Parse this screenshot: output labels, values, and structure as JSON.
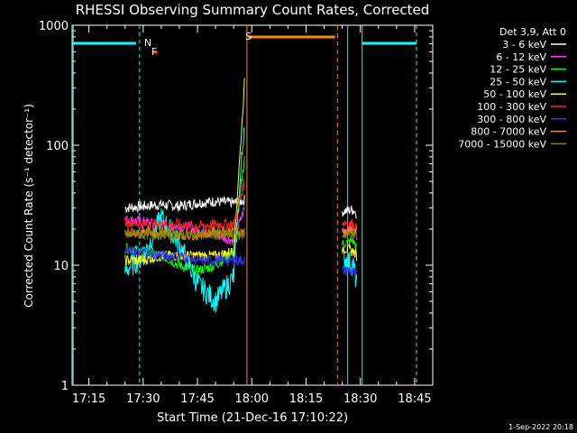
{
  "chart_data": {
    "type": "line",
    "title": "RHESSI Observing Summary Count Rates, Corrected",
    "xlabel": "Start Time (21-Dec-16 17:10:22)",
    "ylabel": "Corrected Count Rate (s⁻¹ detector⁻¹)",
    "yscale": "log",
    "ylim": [
      1,
      1000
    ],
    "xlim": [
      "17:10:22",
      "18:50:00"
    ],
    "x_ticks": [
      "17:15",
      "17:30",
      "17:45",
      "18:00",
      "18:15",
      "18:30",
      "18:45"
    ],
    "y_ticks": [
      "1",
      "10",
      "100",
      "1000"
    ],
    "legend": {
      "placement": "right",
      "header": "Det 3,9, Att 0",
      "entries": [
        {
          "label": "3 - 6 keV",
          "color": "#ffffff"
        },
        {
          "label": "6 - 12 keV",
          "color": "#ff33ff"
        },
        {
          "label": "12 - 25 keV",
          "color": "#00ff00"
        },
        {
          "label": "25 - 50 keV",
          "color": "#00ffff"
        },
        {
          "label": "50 - 100 keV",
          "color": "#ffff00"
        },
        {
          "label": "100 - 300 keV",
          "color": "#ff2020"
        },
        {
          "label": "300 - 800 keV",
          "color": "#3333ff"
        },
        {
          "label": "800 - 7000 keV",
          "color": "#ff8800"
        },
        {
          "label": "7000 - 15000 keV",
          "color": "#888800"
        }
      ]
    },
    "series": [
      {
        "name": "3 - 6 keV",
        "color": "#ffffff",
        "x": [
          "17:25",
          "17:30",
          "17:35",
          "17:40",
          "17:45",
          "17:50",
          "17:55",
          "17:58",
          "18:25",
          "18:28",
          "18:29"
        ],
        "values": [
          30,
          31,
          32,
          31,
          33,
          34,
          33,
          35,
          28,
          29,
          27
        ]
      },
      {
        "name": "6 - 12 keV",
        "color": "#ff33ff",
        "x": [
          "17:25",
          "17:30",
          "17:35",
          "17:40",
          "17:45",
          "17:50",
          "17:55",
          "17:58",
          "18:25",
          "18:28",
          "18:29"
        ],
        "values": [
          24,
          23,
          22,
          21,
          20,
          18,
          16,
          30,
          20,
          20,
          18
        ]
      },
      {
        "name": "12 - 25 keV",
        "color": "#00ff00",
        "x": [
          "17:25",
          "17:30",
          "17:35",
          "17:40",
          "17:45",
          "17:50",
          "17:55",
          "17:58",
          "18:25",
          "18:28",
          "18:29"
        ],
        "values": [
          14,
          13,
          12,
          10,
          9,
          10,
          13,
          80,
          15,
          16,
          14
        ]
      },
      {
        "name": "25 - 50 keV",
        "color": "#00ffff",
        "x": [
          "17:25",
          "17:30",
          "17:35",
          "17:40",
          "17:45",
          "17:50",
          "17:55",
          "17:58",
          "18:25",
          "18:28",
          "18:29"
        ],
        "values": [
          9,
          12,
          25,
          15,
          7,
          5,
          8,
          170,
          12,
          10,
          7
        ]
      },
      {
        "name": "50 - 100 keV",
        "color": "#ffff00",
        "x": [
          "17:25",
          "17:30",
          "17:35",
          "17:40",
          "17:45",
          "17:50",
          "17:55",
          "17:58",
          "18:25",
          "18:28",
          "18:29"
        ],
        "values": [
          11,
          11,
          12,
          12,
          12,
          12,
          13,
          330,
          14,
          13,
          12
        ]
      },
      {
        "name": "100 - 300 keV",
        "color": "#ff2020",
        "x": [
          "17:25",
          "17:30",
          "17:35",
          "17:40",
          "17:45",
          "17:50",
          "17:55",
          "17:58",
          "18:25",
          "18:28",
          "18:29"
        ],
        "values": [
          23,
          22,
          22,
          22,
          21,
          22,
          22,
          50,
          23,
          22,
          20
        ]
      },
      {
        "name": "300 - 800 keV",
        "color": "#3333ff",
        "x": [
          "17:25",
          "17:30",
          "17:35",
          "17:40",
          "17:45",
          "17:50",
          "17:55",
          "17:58",
          "18:25",
          "18:28",
          "18:29"
        ],
        "values": [
          13,
          13,
          12,
          12,
          11,
          11,
          11,
          11,
          9,
          9,
          8
        ]
      },
      {
        "name": "800 - 7000 keV",
        "color": "#ff8800",
        "x": [
          "17:25",
          "17:30",
          "17:35",
          "17:40",
          "17:45",
          "17:50",
          "17:55",
          "17:58",
          "18:25",
          "18:28",
          "18:29"
        ],
        "values": [
          19,
          19,
          19,
          18,
          18,
          19,
          19,
          19,
          19,
          19,
          19
        ]
      },
      {
        "name": "7000 - 15000 keV",
        "color": "#888800",
        "x": [
          "17:25",
          "17:30",
          "17:35",
          "17:40",
          "17:45",
          "17:50",
          "17:55",
          "17:58",
          "18:25",
          "18:28",
          "18:29"
        ],
        "values": [
          18,
          18,
          18,
          18,
          18,
          18,
          18,
          18,
          18,
          18,
          18
        ]
      }
    ],
    "annotations": [
      {
        "text": "N",
        "color": "#00ffff",
        "x": "17:30"
      },
      {
        "text": "F",
        "color": "#ff2020",
        "x": "17:32"
      },
      {
        "text": "S",
        "color": "#ff8800",
        "x": "17:58"
      }
    ],
    "footer_date": "1-Sep-2022 20:18"
  }
}
